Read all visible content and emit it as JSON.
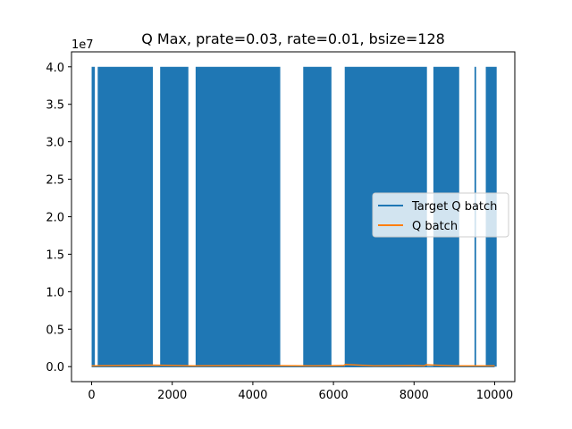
{
  "chart_data": {
    "type": "line",
    "title": "Q Max, prate=0.03, rate=0.01, bsize=128",
    "xlabel": "",
    "ylabel": "",
    "y_offset_label": "1e7",
    "y_scale": 10000000,
    "xlim": [
      -500,
      10500
    ],
    "ylim": [
      -2000000,
      42000000
    ],
    "x_ticks": [
      0,
      2000,
      4000,
      6000,
      8000,
      10000
    ],
    "x_tick_labels": [
      "0",
      "2000",
      "4000",
      "6000",
      "8000",
      "10000"
    ],
    "y_ticks": [
      0,
      5000000,
      10000000,
      15000000,
      20000000,
      25000000,
      30000000,
      35000000,
      40000000
    ],
    "y_tick_labels": [
      "0.0",
      "0.5",
      "1.0",
      "1.5",
      "2.0",
      "2.5",
      "3.0",
      "3.5",
      "4.0"
    ],
    "grid": false,
    "legend_position": "center-right",
    "series": [
      {
        "name": "Target Q batch",
        "color": "#1f77b4",
        "baseline": 0,
        "spike_value": 40000000,
        "spike_ranges": [
          [
            0,
            80
          ],
          [
            150,
            1520
          ],
          [
            1700,
            2400
          ],
          [
            2580,
            4680
          ],
          [
            5250,
            5950
          ],
          [
            6280,
            8320
          ],
          [
            8480,
            9120
          ],
          [
            9500,
            9540
          ],
          [
            9780,
            10050
          ]
        ]
      },
      {
        "name": "Q batch",
        "color": "#ff7f0e",
        "baseline": 0,
        "x": [
          0,
          1500,
          2500,
          4000,
          5500,
          6250,
          6300,
          7000,
          8000,
          8250,
          8300,
          9000,
          10000
        ],
        "y": [
          100000,
          200000,
          100000,
          150000,
          100000,
          150000,
          300000,
          100000,
          150000,
          100000,
          250000,
          100000,
          100000
        ]
      }
    ]
  }
}
